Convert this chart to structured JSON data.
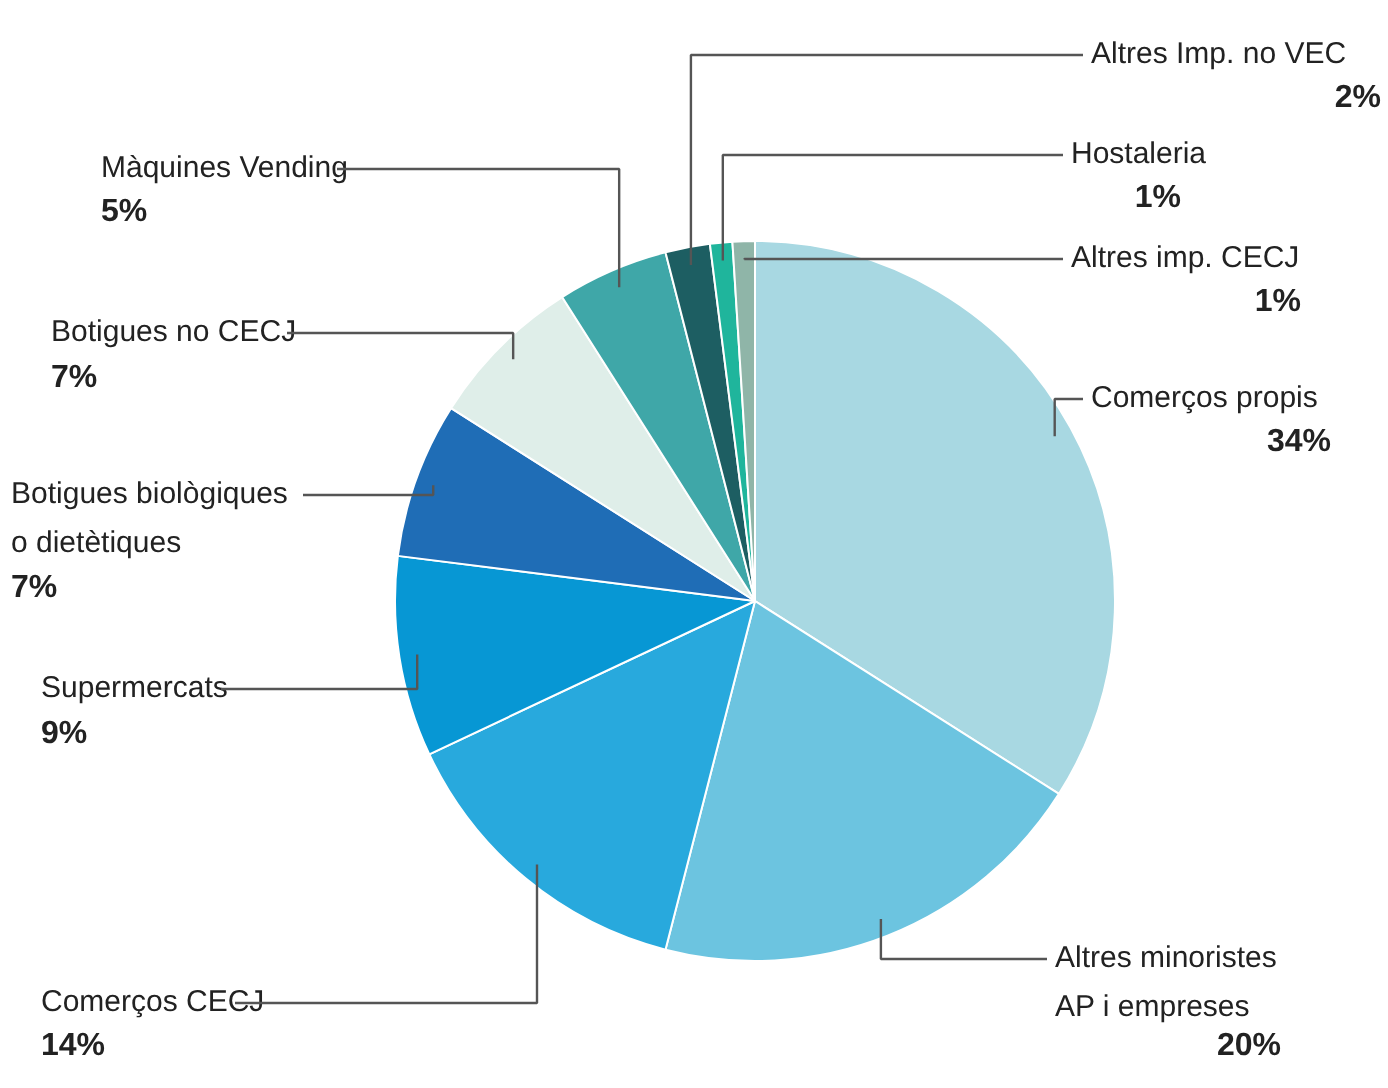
{
  "chart_data": {
    "type": "pie",
    "categories": [
      "Comerços propis",
      "Altres minoristes AP i empreses",
      "Comerços CECJ",
      "Supermercats",
      "Botigues biològiques o dietètiques",
      "Botigues no CECJ",
      "Màquines Vending",
      "Altres Imp. no VEC",
      "Hostaleria",
      "Altres imp. CECJ"
    ],
    "values": [
      34,
      20,
      14,
      9,
      7,
      7,
      5,
      2,
      1,
      1
    ],
    "value_labels": [
      "34%",
      "20%",
      "14%",
      "9%",
      "7%",
      "7%",
      "5%",
      "2%",
      "1%",
      "1%"
    ],
    "colors": [
      "#a8d8e2",
      "#6cc4e0",
      "#28a9dd",
      "#0797d4",
      "#1f6db6",
      "#dfeee9",
      "#3fa7a8",
      "#1d5e62",
      "#1fb59c",
      "#8fb5a8"
    ]
  }
}
